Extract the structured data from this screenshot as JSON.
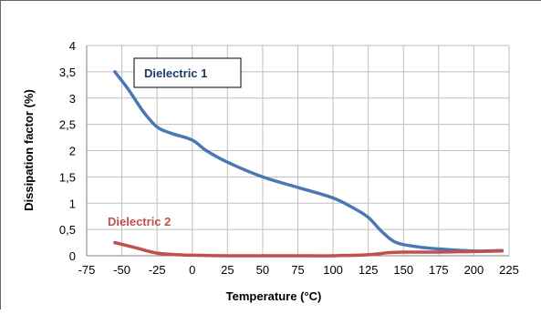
{
  "chart_data": {
    "type": "line",
    "title": "",
    "xlabel": "Temperature (°C)",
    "ylabel": "Dissipation factor (%)",
    "xlim": [
      -75,
      225
    ],
    "ylim": [
      0,
      4
    ],
    "xticks": [
      -75,
      -50,
      -25,
      0,
      25,
      50,
      75,
      100,
      125,
      150,
      175,
      200,
      225
    ],
    "yticks": [
      0,
      0.5,
      1,
      1.5,
      2,
      2.5,
      3,
      3.5,
      4
    ],
    "ytick_labels": [
      "0",
      "0,5",
      "1",
      "1,5",
      "2",
      "2,5",
      "3",
      "3,5",
      "4"
    ],
    "grid": true,
    "legend": "none",
    "series": [
      {
        "name": "Dielectric 1",
        "color": "#4a78b5",
        "x": [
          -55,
          -45,
          -35,
          -25,
          -15,
          0,
          10,
          25,
          50,
          75,
          100,
          115,
          125,
          135,
          145,
          160,
          175,
          200,
          220
        ],
        "y": [
          3.5,
          3.15,
          2.75,
          2.45,
          2.33,
          2.2,
          2.0,
          1.78,
          1.5,
          1.3,
          1.1,
          0.9,
          0.73,
          0.45,
          0.25,
          0.17,
          0.13,
          0.09,
          0.1
        ]
      },
      {
        "name": "Dielectric 2",
        "color": "#c0504d",
        "x": [
          -55,
          -40,
          -25,
          -10,
          0,
          25,
          50,
          75,
          100,
          125,
          140,
          150,
          175,
          200,
          220
        ],
        "y": [
          0.25,
          0.15,
          0.05,
          0.02,
          0.01,
          0.0,
          0.0,
          0.0,
          0.0,
          0.02,
          0.06,
          0.07,
          0.07,
          0.08,
          0.09
        ]
      }
    ]
  }
}
